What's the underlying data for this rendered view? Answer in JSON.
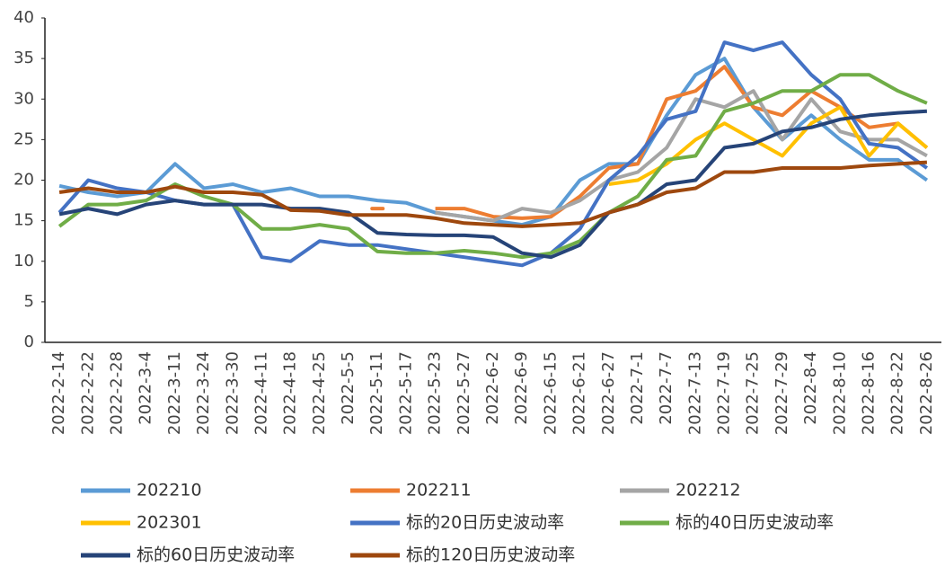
{
  "chart_data": {
    "type": "line",
    "categories": [
      "2022-2-14",
      "2022-2-22",
      "2022-2-28",
      "2022-3-4",
      "2022-3-11",
      "2022-3-24",
      "2022-3-30",
      "2022-4-11",
      "2022-4-18",
      "2022-4-25",
      "2022-5-5",
      "2022-5-11",
      "2022-5-17",
      "2022-5-23",
      "2022-5-27",
      "2022-6-2",
      "2022-6-9",
      "2022-6-15",
      "2022-6-21",
      "2022-6-27",
      "2022-7-1",
      "2022-7-7",
      "2022-7-13",
      "2022-7-19",
      "2022-7-25",
      "2022-7-29",
      "2022-8-4",
      "2022-8-10",
      "2022-8-16",
      "2022-8-22",
      "2022-8-26"
    ],
    "series": [
      {
        "name": "202210",
        "color": "#5b9bd5",
        "values": [
          19.3,
          18.5,
          18,
          18.5,
          22,
          19,
          19.5,
          18.5,
          19,
          18,
          18,
          17.5,
          17.2,
          16,
          15.5,
          15,
          14.5,
          15.5,
          20,
          22,
          22,
          28,
          33,
          35,
          29,
          25,
          28,
          25,
          22.5,
          22.5,
          20
        ]
      },
      {
        "name": "202211",
        "color": "#ed7d31",
        "values": [
          null,
          null,
          null,
          null,
          null,
          null,
          null,
          null,
          null,
          null,
          null,
          16.5,
          null,
          16.5,
          16.5,
          15.5,
          15.3,
          15.5,
          18,
          21.5,
          22,
          30,
          31,
          34,
          29,
          28,
          31,
          29,
          26.5,
          27,
          24
        ]
      },
      {
        "name": "202212",
        "color": "#a5a5a5",
        "values": [
          null,
          null,
          null,
          null,
          null,
          null,
          null,
          null,
          null,
          null,
          null,
          null,
          null,
          16,
          15.5,
          15,
          16.5,
          16,
          17.5,
          20,
          21,
          24,
          30,
          29,
          31,
          25,
          30,
          26,
          25,
          25,
          23
        ]
      },
      {
        "name": "202301",
        "color": "#ffc000",
        "values": [
          null,
          null,
          null,
          null,
          null,
          null,
          null,
          null,
          null,
          null,
          null,
          null,
          null,
          null,
          null,
          null,
          null,
          null,
          null,
          19.5,
          20,
          22,
          25,
          27,
          25,
          23,
          27,
          29,
          23,
          27,
          24
        ]
      },
      {
        "name": "标的20日历史波动率",
        "color": "#4472c4",
        "values": [
          16,
          20,
          19,
          18.5,
          17.5,
          17,
          17,
          10.5,
          10,
          12.5,
          12,
          12,
          11.5,
          11,
          10.5,
          10,
          9.5,
          11,
          14,
          20,
          23,
          27.5,
          28.5,
          37,
          36,
          37,
          33,
          30,
          24.5,
          24,
          21.5
        ]
      },
      {
        "name": "标的40日历史波动率",
        "color": "#70ad47",
        "values": [
          14.3,
          17,
          17,
          17.5,
          19.5,
          18,
          17,
          14,
          14,
          14.5,
          14,
          11.2,
          11,
          11,
          11.3,
          11,
          10.5,
          11,
          12.5,
          16,
          18,
          22.5,
          23,
          28.5,
          29.5,
          31,
          31,
          33,
          33,
          31,
          29.5
        ]
      },
      {
        "name": "标的60日历史波动率",
        "color": "#264478",
        "values": [
          15.8,
          16.5,
          15.8,
          17,
          17.5,
          17,
          17,
          17,
          16.5,
          16.5,
          16,
          13.5,
          13.3,
          13.2,
          13.2,
          13,
          11,
          10.5,
          12,
          16,
          17,
          19.5,
          20,
          24,
          24.5,
          26,
          26.5,
          27.5,
          28,
          28.3,
          28.5
        ]
      },
      {
        "name": "标的120日历史波动率",
        "color": "#9e480e",
        "values": [
          18.5,
          19,
          18.5,
          18.5,
          19.2,
          18.5,
          18.5,
          18.2,
          16.3,
          16.2,
          15.7,
          15.7,
          15.7,
          15.3,
          14.7,
          14.5,
          14.3,
          14.5,
          14.7,
          16,
          17,
          18.5,
          19,
          21,
          21,
          21.5,
          21.5,
          21.5,
          21.8,
          22,
          22.2
        ]
      }
    ],
    "ylim": [
      0,
      40
    ],
    "yticks": [
      0,
      5,
      10,
      15,
      20,
      25,
      30,
      35,
      40
    ],
    "grid": false
  }
}
